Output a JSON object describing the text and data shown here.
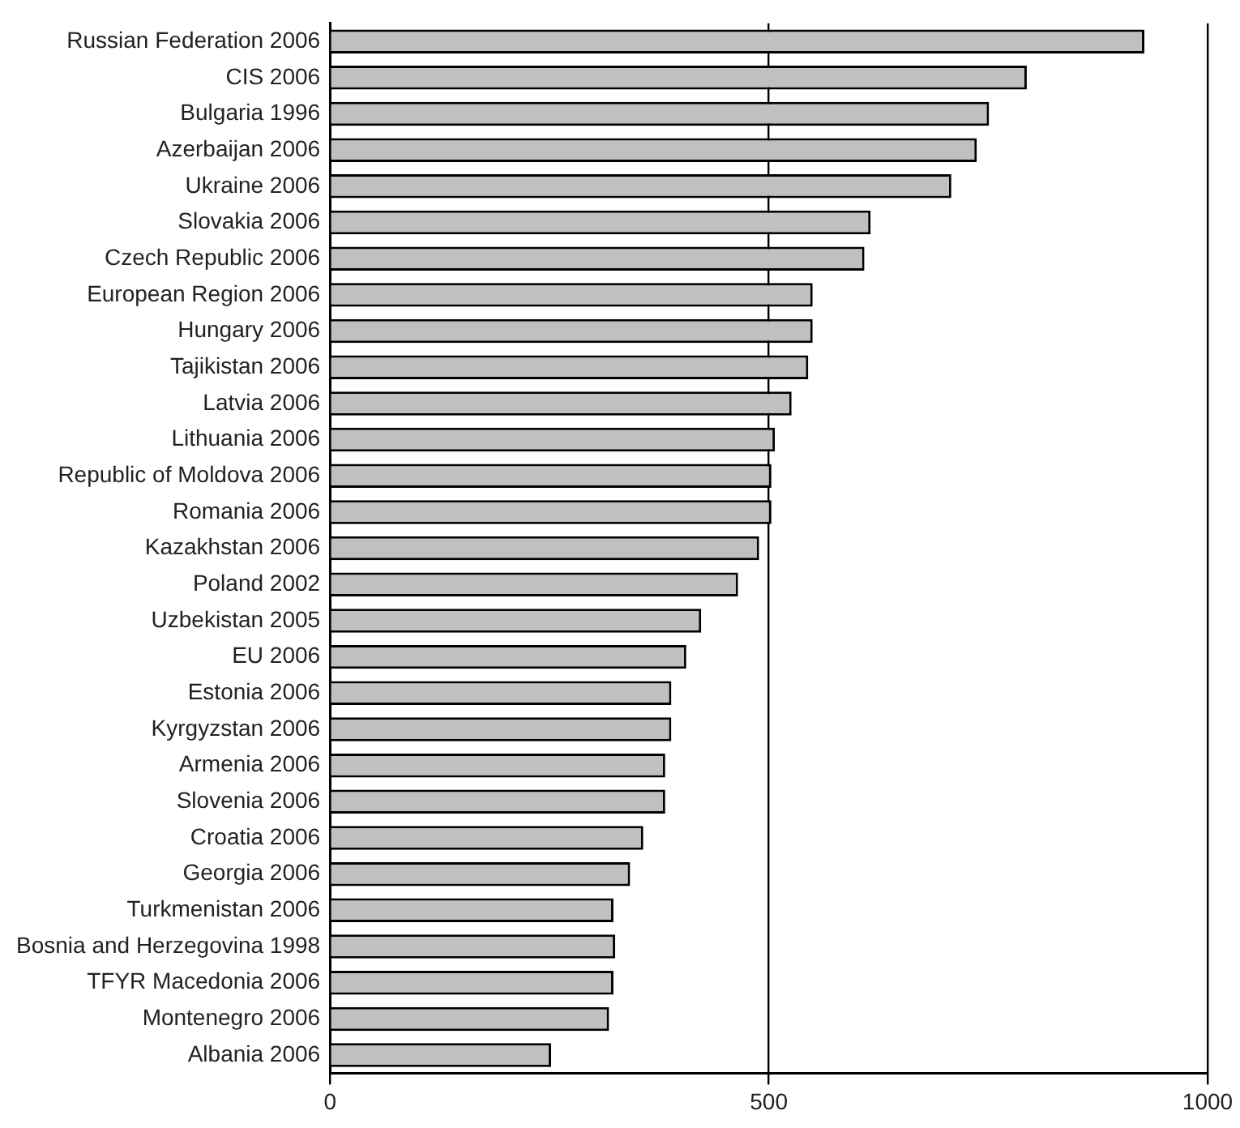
{
  "chart_data": {
    "type": "bar",
    "orientation": "horizontal",
    "categories": [
      "Russian Federation 2006",
      "CIS 2006",
      "Bulgaria 1996",
      "Azerbaijan 2006",
      "Ukraine 2006",
      "Slovakia 2006",
      "Czech Republic 2006",
      "European Region 2006",
      "Hungary 2006",
      "Tajikistan 2006",
      "Latvia 2006",
      "Lithuania 2006",
      "Republic of Moldova 2006",
      "Romania 2006",
      "Kazakhstan 2006",
      "Poland 2002",
      "Uzbekistan 2005",
      "EU 2006",
      "Estonia 2006",
      "Kyrgyzstan 2006",
      "Armenia 2006",
      "Slovenia 2006",
      "Croatia 2006",
      "Georgia 2006",
      "Turkmenistan 2006",
      "Bosnia and Herzegovina 1998",
      "TFYR Macedonia 2006",
      "Montenegro 2006",
      "Albania 2006"
    ],
    "values": [
      928,
      794,
      751,
      737,
      708,
      616,
      609,
      550,
      550,
      545,
      526,
      507,
      503,
      503,
      489,
      465,
      423,
      406,
      389,
      389,
      382,
      382,
      357,
      342,
      323,
      325,
      323,
      318,
      252
    ],
    "color": "#c0c0c0",
    "xlim": [
      0,
      1000
    ],
    "xticks": [
      0,
      500,
      1000
    ],
    "grid": "x",
    "legend": false
  }
}
